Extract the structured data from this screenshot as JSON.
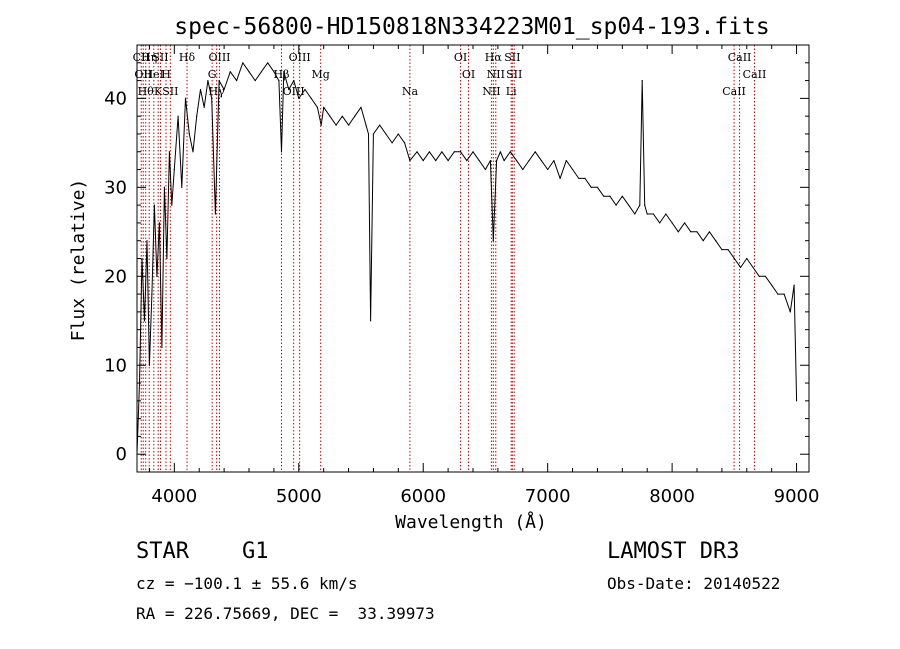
{
  "chart_data": {
    "type": "line",
    "title": "spec-56800-HD150818N334223M01_sp04-193.fits",
    "xlabel": "Wavelength (Å)",
    "ylabel": "Flux (relative)",
    "xlim": [
      3700,
      9100
    ],
    "ylim": [
      -2,
      46
    ],
    "xticks": [
      4000,
      5000,
      6000,
      7000,
      8000,
      9000
    ],
    "yticks": [
      0,
      10,
      20,
      30,
      40
    ],
    "series": [
      {
        "name": "flux",
        "x": [
          3700,
          3720,
          3740,
          3760,
          3780,
          3800,
          3820,
          3840,
          3860,
          3880,
          3900,
          3920,
          3940,
          3960,
          3980,
          4000,
          4030,
          4060,
          4090,
          4120,
          4150,
          4180,
          4210,
          4240,
          4270,
          4300,
          4330,
          4360,
          4400,
          4450,
          4500,
          4550,
          4600,
          4650,
          4700,
          4750,
          4800,
          4840,
          4861,
          4880,
          4920,
          4960,
          5000,
          5050,
          5100,
          5150,
          5180,
          5200,
          5250,
          5300,
          5350,
          5400,
          5450,
          5500,
          5540,
          5560,
          5577,
          5600,
          5650,
          5700,
          5750,
          5800,
          5850,
          5893,
          5950,
          6000,
          6050,
          6100,
          6150,
          6200,
          6250,
          6300,
          6350,
          6400,
          6450,
          6500,
          6540,
          6563,
          6590,
          6620,
          6650,
          6700,
          6750,
          6800,
          6850,
          6900,
          6950,
          7000,
          7050,
          7100,
          7150,
          7200,
          7250,
          7300,
          7350,
          7400,
          7450,
          7500,
          7550,
          7600,
          7650,
          7700,
          7740,
          7760,
          7780,
          7800,
          7850,
          7900,
          7950,
          8000,
          8050,
          8100,
          8150,
          8200,
          8250,
          8300,
          8350,
          8400,
          8450,
          8500,
          8550,
          8600,
          8650,
          8700,
          8750,
          8800,
          8850,
          8900,
          8950,
          8980,
          9000
        ],
        "values": [
          0,
          8,
          22,
          15,
          24,
          10,
          18,
          28,
          20,
          26,
          12,
          30,
          22,
          34,
          28,
          32,
          38,
          30,
          40,
          36,
          34,
          38,
          41,
          39,
          42,
          40,
          27,
          42,
          41,
          43,
          42,
          44,
          43,
          42,
          43,
          44,
          43,
          42,
          34,
          43,
          41,
          42,
          40,
          41,
          40,
          39,
          37,
          39,
          38,
          37,
          38,
          37,
          38,
          39,
          37,
          36,
          15,
          36,
          37,
          36,
          35,
          36,
          35,
          33,
          34,
          33,
          34,
          33,
          34,
          33,
          34,
          34,
          33,
          34,
          33,
          32,
          33,
          24,
          33,
          34,
          33,
          34,
          33,
          32,
          33,
          34,
          33,
          32,
          33,
          31,
          33,
          32,
          31,
          31,
          30,
          30,
          29,
          29,
          28,
          29,
          28,
          27,
          28,
          42,
          28,
          27,
          27,
          26,
          27,
          26,
          25,
          26,
          25,
          25,
          24,
          25,
          24,
          23,
          23,
          22,
          21,
          22,
          21,
          20,
          20,
          19,
          18,
          18,
          16,
          19,
          6
        ]
      }
    ],
    "line_markers": [
      {
        "wavelength": 3734,
        "label": "CII"
      },
      {
        "wavelength": 3750,
        "label": "OII"
      },
      {
        "wavelength": 3770,
        "label": "Hθ"
      },
      {
        "wavelength": 3798,
        "label": "Hη"
      },
      {
        "wavelength": 3835,
        "label": "HeI"
      },
      {
        "wavelength": 3870,
        "label": "K"
      },
      {
        "wavelength": 3889,
        "label": "SII"
      },
      {
        "wavelength": 3933,
        "label": "H"
      },
      {
        "wavelength": 3968,
        "label": "SII"
      },
      {
        "wavelength": 4102,
        "label": "Hδ"
      },
      {
        "wavelength": 4304,
        "label": "G"
      },
      {
        "wavelength": 4340,
        "label": "Hγ"
      },
      {
        "wavelength": 4363,
        "label": "OIII"
      },
      {
        "wavelength": 4861,
        "label": "Hβ"
      },
      {
        "wavelength": 4959,
        "label": "OIII"
      },
      {
        "wavelength": 5007,
        "label": "OIII"
      },
      {
        "wavelength": 5176,
        "label": "Mg"
      },
      {
        "wavelength": 5893,
        "label": "Na"
      },
      {
        "wavelength": 6300,
        "label": "OI"
      },
      {
        "wavelength": 6364,
        "label": "OI"
      },
      {
        "wavelength": 6548,
        "label": "NII"
      },
      {
        "wavelength": 6563,
        "label": "Hα"
      },
      {
        "wavelength": 6583,
        "label": "NII"
      },
      {
        "wavelength": 6707,
        "label": "Li"
      },
      {
        "wavelength": 6716,
        "label": "SII"
      },
      {
        "wavelength": 6731,
        "label": "SII"
      },
      {
        "wavelength": 8498,
        "label": "CaII"
      },
      {
        "wavelength": 8542,
        "label": "CaII"
      },
      {
        "wavelength": 8662,
        "label": "CaII"
      }
    ]
  },
  "info": {
    "object_class": "STAR",
    "subclass": "G1",
    "survey": "LAMOST DR3",
    "cz": "cz = −100.1 ± 55.6 km/s",
    "obs_date": "Obs-Date: 20140522",
    "coords": "RA = 226.75669, DEC =  33.39973"
  }
}
